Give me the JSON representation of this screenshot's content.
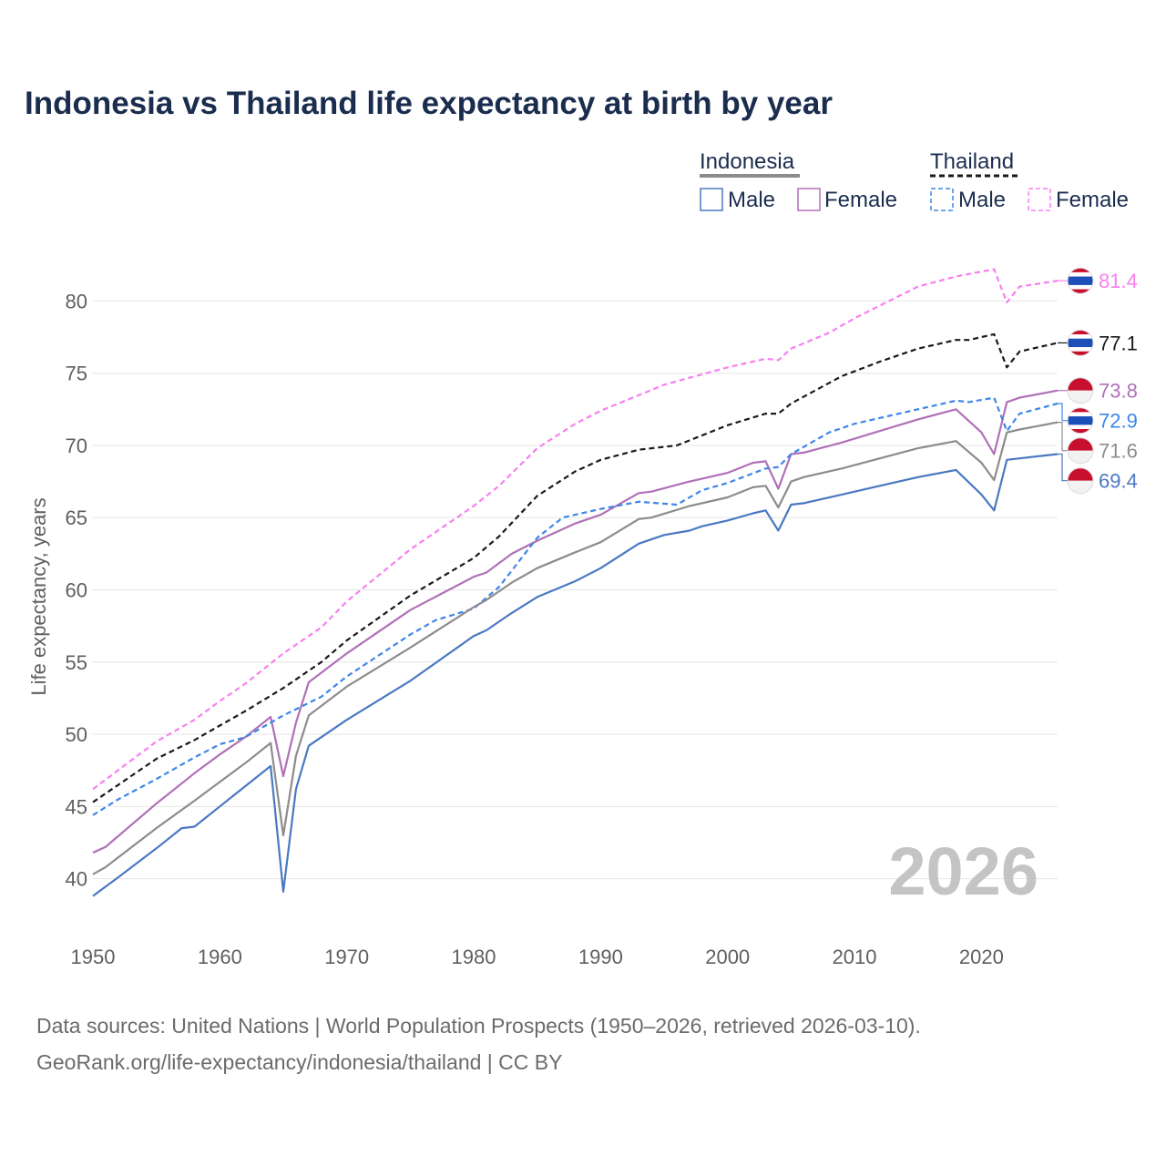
{
  "title": "Indonesia vs Thailand life expectancy at birth by year",
  "source_lines": [
    "Data sources: United Nations | World Population Prospects (1950–2026, retrieved 2026-03-10).",
    "GeoRank.org/life-expectancy/indonesia/thailand | CC BY"
  ],
  "legend": {
    "groups": [
      {
        "country": "Indonesia",
        "color": "#8c8c8c",
        "dashed": false,
        "items": [
          {
            "label": "Male",
            "color": "#4a78c2"
          },
          {
            "label": "Female",
            "color": "#b070b8"
          }
        ]
      },
      {
        "country": "Thailand",
        "color": "#1a1a1a",
        "dashed": true,
        "items": [
          {
            "label": "Male",
            "color": "#3d86e8"
          },
          {
            "label": "Female",
            "color": "#f77ff0"
          }
        ]
      }
    ]
  },
  "chart_data": {
    "type": "line",
    "title": "Indonesia vs Thailand life expectancy at birth by year",
    "xlabel": "",
    "ylabel": "Life expectancy, years",
    "xlim": [
      1950,
      2026
    ],
    "ylim": [
      36,
      84
    ],
    "xticks": [
      1950,
      1960,
      1970,
      1980,
      1990,
      2000,
      2010,
      2020
    ],
    "yticks": [
      40,
      45,
      50,
      55,
      60,
      65,
      70,
      75,
      80
    ],
    "year_label": "2026",
    "grid": true,
    "series": [
      {
        "name": "Thailand Female",
        "country": "Thailand",
        "color": "#f77ff0",
        "dashed": true,
        "end_label": "81.4",
        "flag": "thailand",
        "points": [
          [
            1950,
            46.2
          ],
          [
            1955,
            49.5
          ],
          [
            1958,
            51.0
          ],
          [
            1960,
            52.3
          ],
          [
            1962,
            53.5
          ],
          [
            1965,
            55.6
          ],
          [
            1968,
            57.4
          ],
          [
            1970,
            59.2
          ],
          [
            1975,
            62.8
          ],
          [
            1980,
            65.8
          ],
          [
            1982,
            67.2
          ],
          [
            1985,
            69.8
          ],
          [
            1988,
            71.5
          ],
          [
            1990,
            72.4
          ],
          [
            1995,
            74.2
          ],
          [
            2000,
            75.4
          ],
          [
            2003,
            76.0
          ],
          [
            2004,
            75.9
          ],
          [
            2005,
            76.7
          ],
          [
            2008,
            77.8
          ],
          [
            2010,
            78.8
          ],
          [
            2015,
            81.0
          ],
          [
            2018,
            81.7
          ],
          [
            2021,
            82.2
          ],
          [
            2022,
            79.9
          ],
          [
            2023,
            81.0
          ],
          [
            2026,
            81.4
          ]
        ]
      },
      {
        "name": "Thailand both sexes",
        "country": "Thailand",
        "color": "#1a1a1a",
        "dashed": true,
        "end_label": "77.1",
        "flag": "thailand",
        "points": [
          [
            1950,
            45.3
          ],
          [
            1955,
            48.3
          ],
          [
            1958,
            49.6
          ],
          [
            1960,
            50.6
          ],
          [
            1962,
            51.6
          ],
          [
            1965,
            53.2
          ],
          [
            1968,
            55.0
          ],
          [
            1970,
            56.5
          ],
          [
            1975,
            59.6
          ],
          [
            1980,
            62.2
          ],
          [
            1982,
            63.7
          ],
          [
            1985,
            66.5
          ],
          [
            1988,
            68.2
          ],
          [
            1990,
            69.0
          ],
          [
            1993,
            69.7
          ],
          [
            1996,
            70.0
          ],
          [
            2000,
            71.4
          ],
          [
            2003,
            72.2
          ],
          [
            2004,
            72.2
          ],
          [
            2005,
            72.9
          ],
          [
            2009,
            74.8
          ],
          [
            2012,
            75.8
          ],
          [
            2015,
            76.7
          ],
          [
            2018,
            77.3
          ],
          [
            2019,
            77.3
          ],
          [
            2021,
            77.7
          ],
          [
            2022,
            75.4
          ],
          [
            2023,
            76.5
          ],
          [
            2026,
            77.1
          ]
        ]
      },
      {
        "name": "Indonesia Female",
        "country": "Indonesia",
        "color": "#b070b8",
        "dashed": false,
        "end_label": "73.8",
        "flag": "indonesia",
        "points": [
          [
            1950,
            41.8
          ],
          [
            1951,
            42.2
          ],
          [
            1955,
            45.2
          ],
          [
            1958,
            47.3
          ],
          [
            1960,
            48.6
          ],
          [
            1962,
            49.8
          ],
          [
            1964,
            51.2
          ],
          [
            1965,
            47.1
          ],
          [
            1966,
            50.8
          ],
          [
            1967,
            53.6
          ],
          [
            1970,
            55.6
          ],
          [
            1975,
            58.6
          ],
          [
            1980,
            60.9
          ],
          [
            1981,
            61.2
          ],
          [
            1983,
            62.5
          ],
          [
            1985,
            63.4
          ],
          [
            1988,
            64.6
          ],
          [
            1990,
            65.2
          ],
          [
            1993,
            66.7
          ],
          [
            1994,
            66.8
          ],
          [
            1997,
            67.5
          ],
          [
            2000,
            68.1
          ],
          [
            2002,
            68.8
          ],
          [
            2003,
            68.9
          ],
          [
            2004,
            67.0
          ],
          [
            2005,
            69.4
          ],
          [
            2006,
            69.5
          ],
          [
            2009,
            70.2
          ],
          [
            2012,
            71.0
          ],
          [
            2015,
            71.8
          ],
          [
            2018,
            72.5
          ],
          [
            2020,
            70.9
          ],
          [
            2021,
            69.4
          ],
          [
            2022,
            73.0
          ],
          [
            2023,
            73.3
          ],
          [
            2026,
            73.8
          ]
        ]
      },
      {
        "name": "Thailand Male",
        "country": "Thailand",
        "color": "#3d86e8",
        "dashed": true,
        "end_label": "72.9",
        "flag": "thailand",
        "points": [
          [
            1950,
            44.4
          ],
          [
            1952,
            45.5
          ],
          [
            1955,
            46.9
          ],
          [
            1958,
            48.4
          ],
          [
            1960,
            49.3
          ],
          [
            1962,
            49.8
          ],
          [
            1965,
            51.3
          ],
          [
            1968,
            52.6
          ],
          [
            1970,
            54.0
          ],
          [
            1975,
            56.9
          ],
          [
            1977,
            57.9
          ],
          [
            1980,
            58.7
          ],
          [
            1982,
            60.2
          ],
          [
            1985,
            63.6
          ],
          [
            1987,
            65.0
          ],
          [
            1990,
            65.6
          ],
          [
            1993,
            66.1
          ],
          [
            1996,
            65.9
          ],
          [
            1998,
            66.9
          ],
          [
            2000,
            67.4
          ],
          [
            2003,
            68.4
          ],
          [
            2004,
            68.5
          ],
          [
            2005,
            69.4
          ],
          [
            2008,
            70.9
          ],
          [
            2010,
            71.5
          ],
          [
            2015,
            72.5
          ],
          [
            2018,
            73.1
          ],
          [
            2019,
            73.0
          ],
          [
            2021,
            73.3
          ],
          [
            2022,
            71.0
          ],
          [
            2023,
            72.2
          ],
          [
            2026,
            72.9
          ]
        ]
      },
      {
        "name": "Indonesia both sexes",
        "country": "Indonesia",
        "color": "#8c8c8c",
        "dashed": false,
        "end_label": "71.6",
        "flag": "indonesia",
        "points": [
          [
            1950,
            40.3
          ],
          [
            1951,
            40.8
          ],
          [
            1955,
            43.5
          ],
          [
            1958,
            45.4
          ],
          [
            1960,
            46.7
          ],
          [
            1962,
            48.0
          ],
          [
            1964,
            49.4
          ],
          [
            1965,
            43.0
          ],
          [
            1966,
            48.5
          ],
          [
            1967,
            51.3
          ],
          [
            1970,
            53.3
          ],
          [
            1975,
            56.0
          ],
          [
            1980,
            58.8
          ],
          [
            1981,
            59.3
          ],
          [
            1983,
            60.5
          ],
          [
            1985,
            61.5
          ],
          [
            1988,
            62.6
          ],
          [
            1990,
            63.3
          ],
          [
            1993,
            64.9
          ],
          [
            1994,
            65.0
          ],
          [
            1997,
            65.8
          ],
          [
            2000,
            66.4
          ],
          [
            2002,
            67.1
          ],
          [
            2003,
            67.2
          ],
          [
            2004,
            65.7
          ],
          [
            2005,
            67.5
          ],
          [
            2006,
            67.8
          ],
          [
            2009,
            68.4
          ],
          [
            2012,
            69.1
          ],
          [
            2015,
            69.8
          ],
          [
            2018,
            70.3
          ],
          [
            2020,
            68.8
          ],
          [
            2021,
            67.6
          ],
          [
            2022,
            70.9
          ],
          [
            2023,
            71.1
          ],
          [
            2026,
            71.6
          ]
        ]
      },
      {
        "name": "Indonesia Male",
        "country": "Indonesia",
        "color": "#4a78c2",
        "dashed": false,
        "end_label": "69.4",
        "flag": "indonesia",
        "points": [
          [
            1950,
            38.8
          ],
          [
            1952,
            40.1
          ],
          [
            1955,
            42.1
          ],
          [
            1957,
            43.5
          ],
          [
            1958,
            43.6
          ],
          [
            1960,
            45.0
          ],
          [
            1962,
            46.4
          ],
          [
            1964,
            47.8
          ],
          [
            1965,
            39.1
          ],
          [
            1966,
            46.2
          ],
          [
            1967,
            49.2
          ],
          [
            1970,
            51.0
          ],
          [
            1975,
            53.7
          ],
          [
            1980,
            56.8
          ],
          [
            1981,
            57.2
          ],
          [
            1983,
            58.4
          ],
          [
            1985,
            59.5
          ],
          [
            1988,
            60.6
          ],
          [
            1990,
            61.5
          ],
          [
            1993,
            63.2
          ],
          [
            1995,
            63.8
          ],
          [
            1997,
            64.1
          ],
          [
            1998,
            64.4
          ],
          [
            2000,
            64.8
          ],
          [
            2002,
            65.3
          ],
          [
            2003,
            65.5
          ],
          [
            2004,
            64.1
          ],
          [
            2005,
            65.9
          ],
          [
            2006,
            66.0
          ],
          [
            2009,
            66.6
          ],
          [
            2012,
            67.2
          ],
          [
            2015,
            67.8
          ],
          [
            2018,
            68.3
          ],
          [
            2020,
            66.6
          ],
          [
            2021,
            65.5
          ],
          [
            2022,
            69.0
          ],
          [
            2023,
            69.1
          ],
          [
            2026,
            69.4
          ]
        ]
      }
    ]
  }
}
